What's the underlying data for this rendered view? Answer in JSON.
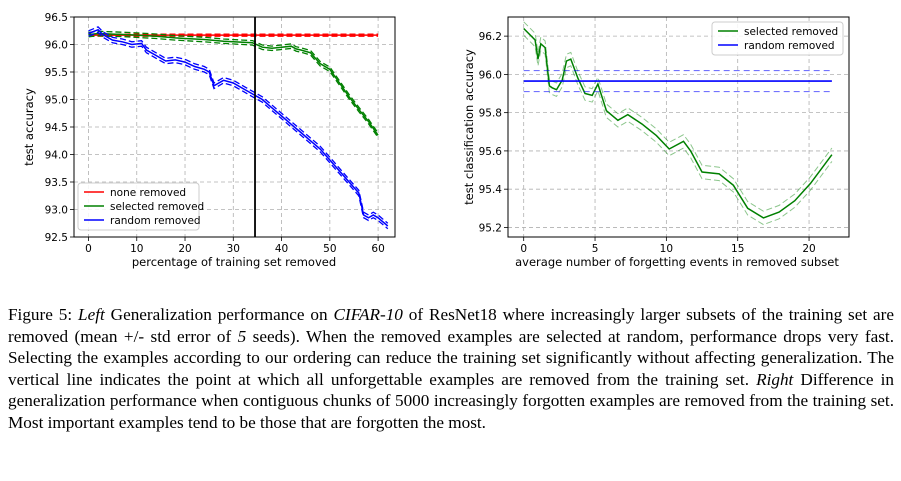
{
  "chart_data": [
    {
      "type": "line",
      "xlabel": "percentage of training set removed",
      "ylabel": "test accuracy",
      "xlim": [
        -3,
        63.5
      ],
      "ylim": [
        92.5,
        96.5
      ],
      "xticks": [
        0,
        10,
        20,
        30,
        40,
        50,
        60
      ],
      "yticks": [
        92.5,
        93.0,
        93.5,
        94.0,
        94.5,
        95.0,
        95.5,
        96.0,
        96.5
      ],
      "grid": true,
      "legend": "lower-left",
      "vline": 34.5,
      "series": [
        {
          "name": "none removed",
          "color": "#ff0000",
          "band": 0.02,
          "x": [
            0,
            60
          ],
          "y": [
            96.17,
            96.17
          ]
        },
        {
          "name": "selected removed",
          "color": "#008000",
          "band": 0.04,
          "x": [
            0,
            2,
            5,
            8,
            10,
            14,
            18,
            20,
            24,
            28,
            32,
            34,
            36,
            38,
            40,
            42,
            43,
            44,
            46,
            48,
            50,
            52,
            54,
            56,
            58,
            60
          ],
          "y": [
            96.18,
            96.2,
            96.19,
            96.18,
            96.17,
            96.15,
            96.12,
            96.11,
            96.09,
            96.06,
            96.04,
            96.03,
            95.95,
            95.93,
            95.95,
            95.97,
            95.92,
            95.9,
            95.85,
            95.65,
            95.55,
            95.3,
            95.05,
            94.82,
            94.6,
            94.35
          ]
        },
        {
          "name": "random removed",
          "color": "#0000ff",
          "band": 0.05,
          "x": [
            0,
            2,
            3,
            5,
            7,
            9,
            11,
            12,
            14,
            16,
            18,
            20,
            22,
            24,
            25,
            26,
            27,
            28,
            30,
            32,
            34,
            36,
            38,
            40,
            42,
            44,
            46,
            48,
            50,
            52,
            54,
            56,
            57,
            58,
            59,
            60,
            62
          ],
          "y": [
            96.2,
            96.27,
            96.18,
            96.08,
            96.05,
            96.0,
            96.02,
            95.9,
            95.8,
            95.7,
            95.72,
            95.68,
            95.6,
            95.55,
            95.5,
            95.25,
            95.3,
            95.35,
            95.3,
            95.2,
            95.1,
            95.0,
            94.85,
            94.7,
            94.55,
            94.4,
            94.25,
            94.1,
            93.9,
            93.7,
            93.5,
            93.3,
            92.9,
            92.85,
            92.9,
            92.85,
            92.7
          ]
        }
      ]
    },
    {
      "type": "line",
      "xlabel": "average number of forgetting events in removed subset",
      "ylabel": "test classification accuracy",
      "xlim": [
        -1.1,
        22.8
      ],
      "ylim": [
        95.15,
        96.3
      ],
      "xticks": [
        0,
        5,
        10,
        15,
        20
      ],
      "yticks": [
        95.2,
        95.4,
        95.6,
        95.8,
        96.0,
        96.2
      ],
      "grid": true,
      "legend": "top-right",
      "series": [
        {
          "name": "selected removed",
          "color": "#008000",
          "band": 0.035,
          "x": [
            0,
            0.8,
            1.0,
            1.2,
            1.5,
            1.8,
            2.0,
            2.3,
            2.7,
            3.0,
            3.3,
            3.8,
            4.3,
            4.8,
            5.2,
            5.8,
            6.6,
            7.3,
            8.3,
            9.3,
            10.2,
            11.2,
            11.7,
            12.5,
            13.7,
            14.7,
            15.7,
            16.8,
            17.9,
            19.0,
            20.1,
            21.6
          ],
          "y": [
            96.24,
            96.18,
            96.08,
            96.16,
            96.14,
            95.94,
            95.93,
            95.92,
            95.97,
            96.07,
            96.08,
            95.98,
            95.9,
            95.89,
            95.95,
            95.81,
            95.76,
            95.79,
            95.74,
            95.68,
            95.61,
            95.65,
            95.6,
            95.49,
            95.48,
            95.42,
            95.3,
            95.25,
            95.28,
            95.34,
            95.43,
            95.58
          ]
        },
        {
          "name": "random removed",
          "color": "#0000ff",
          "band": 0.055,
          "flat": 95.965,
          "x": [
            0,
            21.6
          ],
          "y": [
            95.965,
            95.965
          ]
        }
      ]
    }
  ],
  "caption": {
    "label": "Figure 5:",
    "left_word": "Left",
    "t1": " Generalization performance on ",
    "dataset": "CIFAR-10",
    "t2": " of ResNet18 where increasingly larger subsets of the training set are removed (mean +/- std error of ",
    "seeds_num": "5",
    "t3": " seeds). When the removed examples are selected at random, performance drops very fast. Selecting the examples according to our ordering can reduce the training set significantly without affecting generalization. The vertical line indicates the point at which all unforgettable examples are removed from the training set. ",
    "right_word": "Right",
    "t4": " Difference in generalization performance when contiguous chunks of 5000 increasingly forgotten examples are removed from the training set. Most important examples tend to be those that are forgotten the most."
  }
}
